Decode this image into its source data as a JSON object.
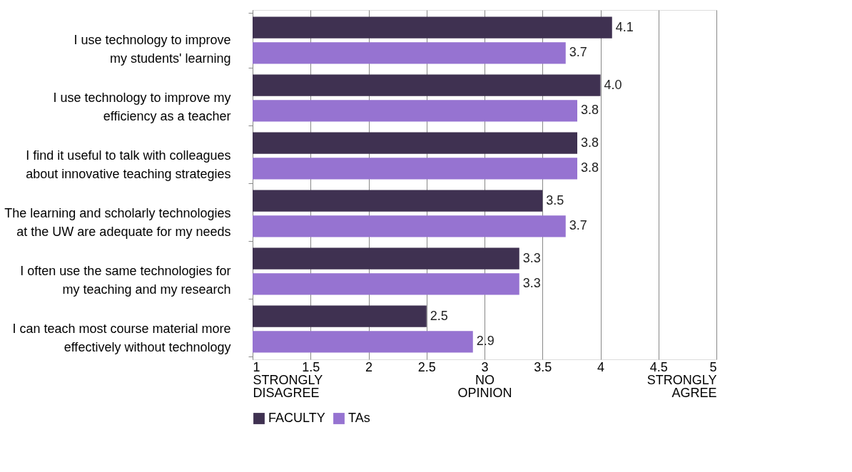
{
  "chart_data": {
    "type": "bar",
    "orientation": "horizontal",
    "categories": [
      "I use technology to improve\nmy students' learning",
      "I use technology to improve my\nefficiency as a teacher",
      "I find it useful to talk with colleagues\nabout innovative teaching strategies",
      "The learning and scholarly technologies\nat the UW are adequate for my needs",
      "I often use the same technologies for\nmy teaching and my research",
      "I can teach most course material more\neffectively without technology"
    ],
    "series": [
      {
        "name": "FACULTY",
        "color": "#3f3151",
        "values": [
          4.1,
          4.0,
          3.8,
          3.5,
          3.3,
          2.5
        ],
        "value_labels": [
          "4.1",
          "4.0",
          "3.8",
          "3.5",
          "3.3",
          "2.5"
        ]
      },
      {
        "name": "TAs",
        "color": "#9673d1",
        "values": [
          3.7,
          3.8,
          3.8,
          3.7,
          3.3,
          2.9
        ],
        "value_labels": [
          "3.7",
          "3.8",
          "3.8",
          "3.7",
          "3.3",
          "2.9"
        ]
      }
    ],
    "xlim": [
      1,
      5
    ],
    "xticks": [
      {
        "value": 1,
        "label": "1\nSTRONGLY\nDISAGREE"
      },
      1.5,
      2,
      2.5,
      {
        "value": 3,
        "label": "3\nNO\nOPINION"
      },
      3.5,
      4,
      4.5,
      {
        "value": 5,
        "label": "5\nSTRONGLY\nAGREE"
      }
    ],
    "grid": "x",
    "legend": "bottom"
  }
}
